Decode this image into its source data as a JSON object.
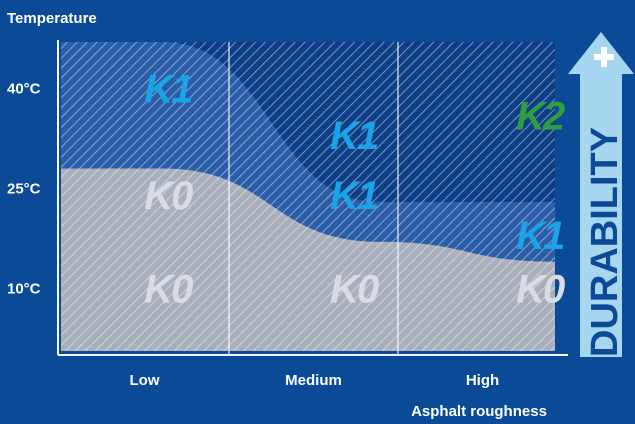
{
  "colors": {
    "background": "#0a4a96",
    "zone_dark": "#0d3f86",
    "zone_blue": "#2a5ea8",
    "zone_grey": "#a9b0bb",
    "k1": "#1aa3e6",
    "k2": "#2e9e3e",
    "k0": "#d9dde3",
    "durability_arrow": "#a7d6f0",
    "durability_text": "#0a4a96",
    "text": "#ffffff"
  },
  "chart_data": {
    "type": "area",
    "title": "",
    "ylabel": "Temperature",
    "xlabel": "Asphalt roughness",
    "x_categories": [
      "Low",
      "Medium",
      "High"
    ],
    "y_ticks": [
      "10°C",
      "25°C",
      "40°C"
    ],
    "ylim": [
      0,
      47
    ],
    "regions": [
      {
        "id": "k0",
        "boundary_temperature": [
          28,
          28,
          17,
          14
        ],
        "color_ref": "k0"
      },
      {
        "id": "k1",
        "boundary_temperature": [
          47,
          47,
          23,
          23
        ],
        "color_ref": "k1"
      },
      {
        "id": "k2",
        "color_ref": "k2"
      }
    ],
    "zone_labels": [
      {
        "text": "K1",
        "kind": "k1",
        "x": 0.2,
        "y": 40
      },
      {
        "text": "K1",
        "kind": "k1",
        "x": 1.3,
        "y": 33
      },
      {
        "text": "K1",
        "kind": "k1",
        "x": 1.3,
        "y": 24
      },
      {
        "text": "K2",
        "kind": "k2",
        "x": 2.4,
        "y": 36
      },
      {
        "text": "K1",
        "kind": "k1",
        "x": 2.4,
        "y": 18
      },
      {
        "text": "K0",
        "kind": "k0",
        "x": 0.2,
        "y": 24
      },
      {
        "text": "K0",
        "kind": "k0",
        "x": 0.2,
        "y": 10
      },
      {
        "text": "K0",
        "kind": "k0",
        "x": 1.3,
        "y": 10
      },
      {
        "text": "K0",
        "kind": "k0",
        "x": 2.4,
        "y": 10
      }
    ],
    "side_label": "DURABILITY"
  }
}
